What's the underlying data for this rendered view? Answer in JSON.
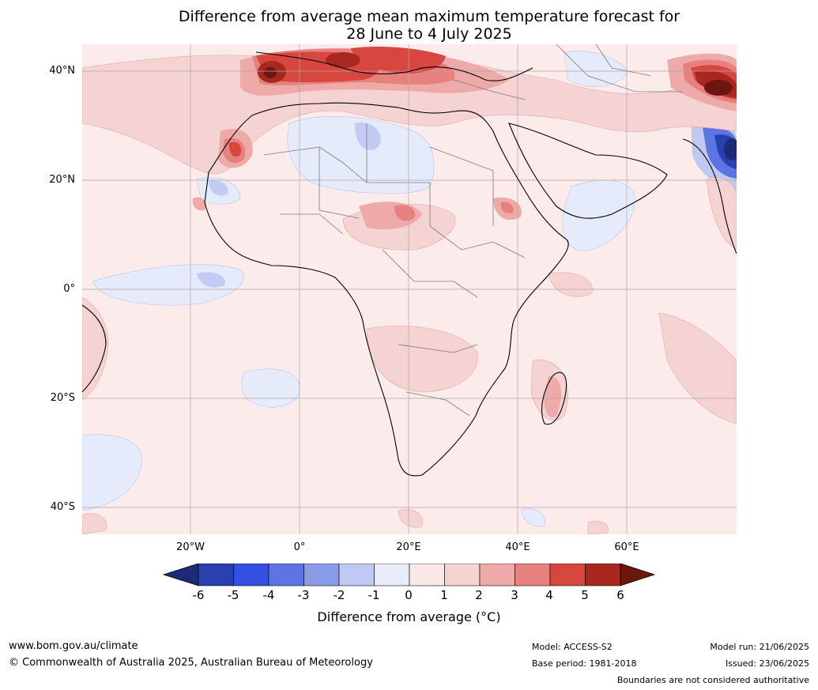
{
  "title_line1": "Difference from average mean maximum temperature forecast for",
  "title_line2": "28 June to 4 July 2025",
  "lat_labels": [
    "40°N",
    "20°N",
    "0°",
    "20°S",
    "40°S"
  ],
  "lon_labels": [
    "20°W",
    "0°",
    "20°E",
    "40°E",
    "60°E"
  ],
  "colorbar": {
    "ticks": [
      "-6",
      "-5",
      "-4",
      "-3",
      "-2",
      "-1",
      "0",
      "1",
      "2",
      "3",
      "4",
      "5",
      "6"
    ],
    "colors": [
      "#1c2a78",
      "#2a3fb0",
      "#3450e0",
      "#5c74e4",
      "#8a9ce8",
      "#c0c9f3",
      "#e8ecfb",
      "#fbe9e8",
      "#f5d3d2",
      "#eeaaa8",
      "#e6817d",
      "#d8473f",
      "#a8271f",
      "#6b1710"
    ],
    "title": "Difference from average (°C)"
  },
  "footer": {
    "website": "www.bom.gov.au/climate",
    "copyright": "© Commonwealth of Australia 2025, Australian Bureau of Meteorology",
    "model": "Model: ACCESS-S2",
    "base_period": "Base period: 1981-2018",
    "model_run": "Model run: 21/06/2025",
    "issued": "Issued: 23/06/2025",
    "disclaimer": "Boundaries are not considered authoritative"
  }
}
